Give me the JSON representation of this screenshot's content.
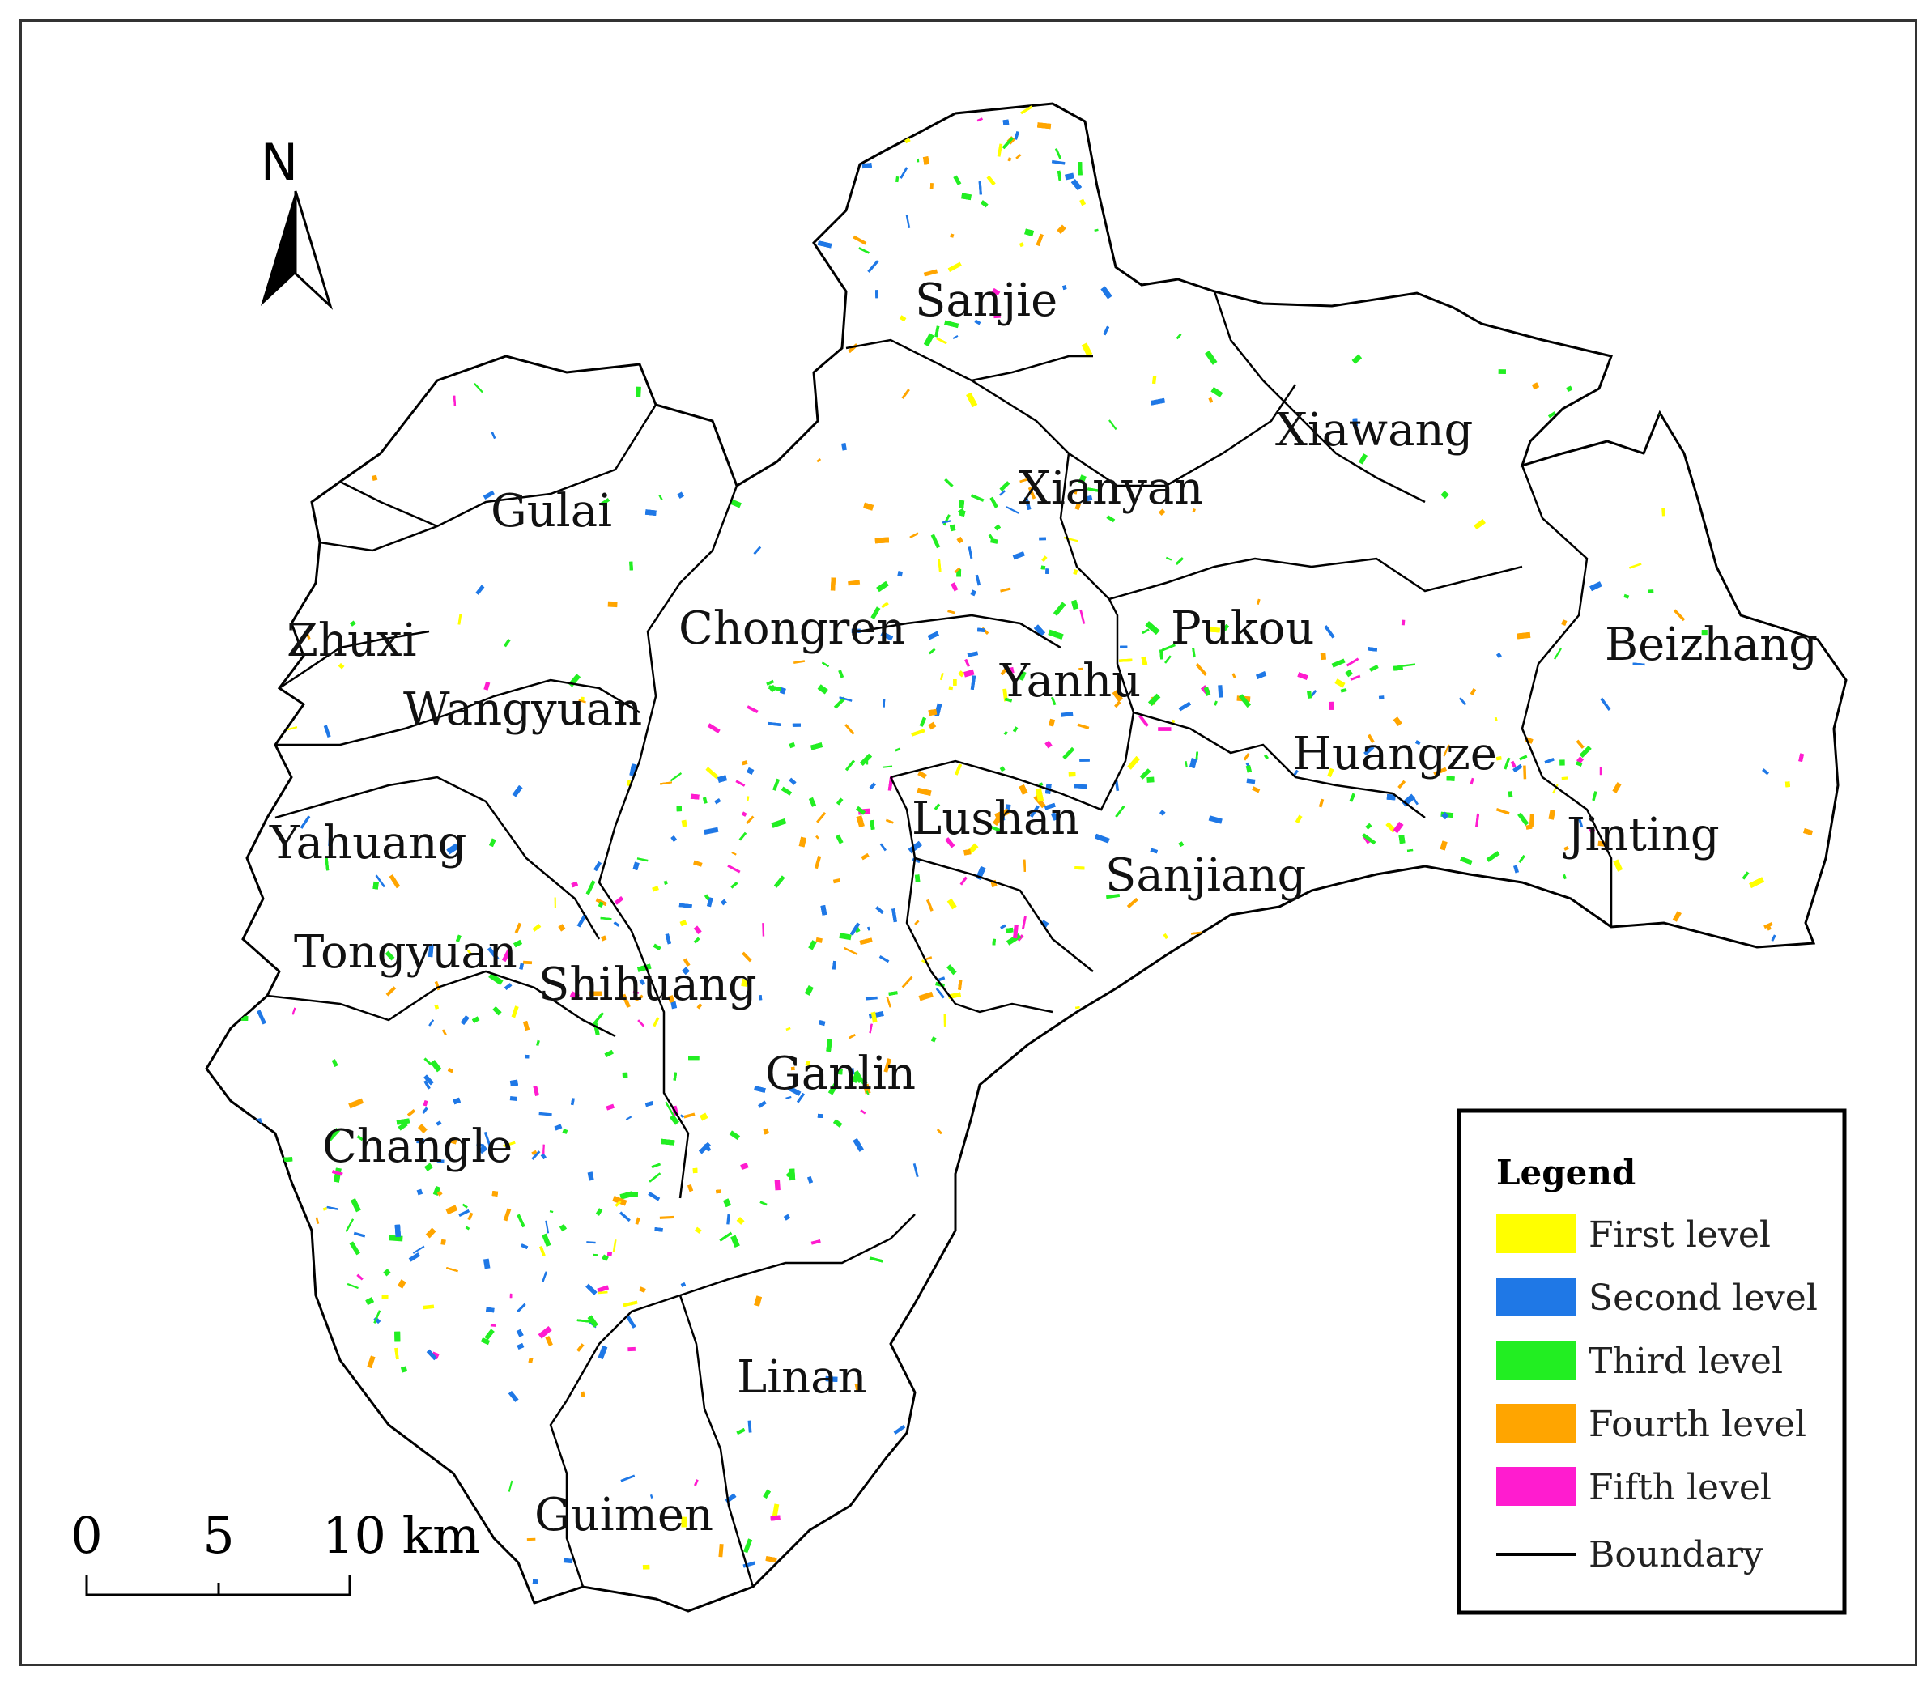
{
  "map": {
    "labels": {
      "sanjie": "Sanjie",
      "xiawang": "Xiawang",
      "xianyan": "Xianyan",
      "gulai": "Gulai",
      "chongren": "Chongren",
      "pukou": "Pukou",
      "beizhang": "Beizhang",
      "zhuxi": "Zhuxi",
      "wangyuan": "Wangyuan",
      "yanhu": "Yanhu",
      "huangze": "Huangze",
      "lushan": "Lushan",
      "jinting": "Jinting",
      "yahuang": "Yahuang",
      "sanjiang": "Sanjiang",
      "tongyuan": "Tongyuan",
      "shihuang": "Shihuang",
      "ganlin": "Ganlin",
      "changle": "Changle",
      "linan": "Linan",
      "guimen": "Guimen"
    }
  },
  "north_arrow": {
    "letter": "N"
  },
  "scale_bar": {
    "tick_0": "0",
    "tick_1": "5",
    "tick_2": "10 km"
  },
  "legend": {
    "title": "Legend",
    "items": [
      {
        "label": "First level",
        "color": "#ffff00"
      },
      {
        "label": "Second level",
        "color": "#1f78e6"
      },
      {
        "label": "Third level",
        "color": "#22ee22"
      },
      {
        "label": "Fourth level",
        "color": "#ffa500"
      },
      {
        "label": "Fifth level",
        "color": "#ff1ccf"
      }
    ],
    "boundary_label": "Boundary",
    "boundary_color": "#000000"
  }
}
